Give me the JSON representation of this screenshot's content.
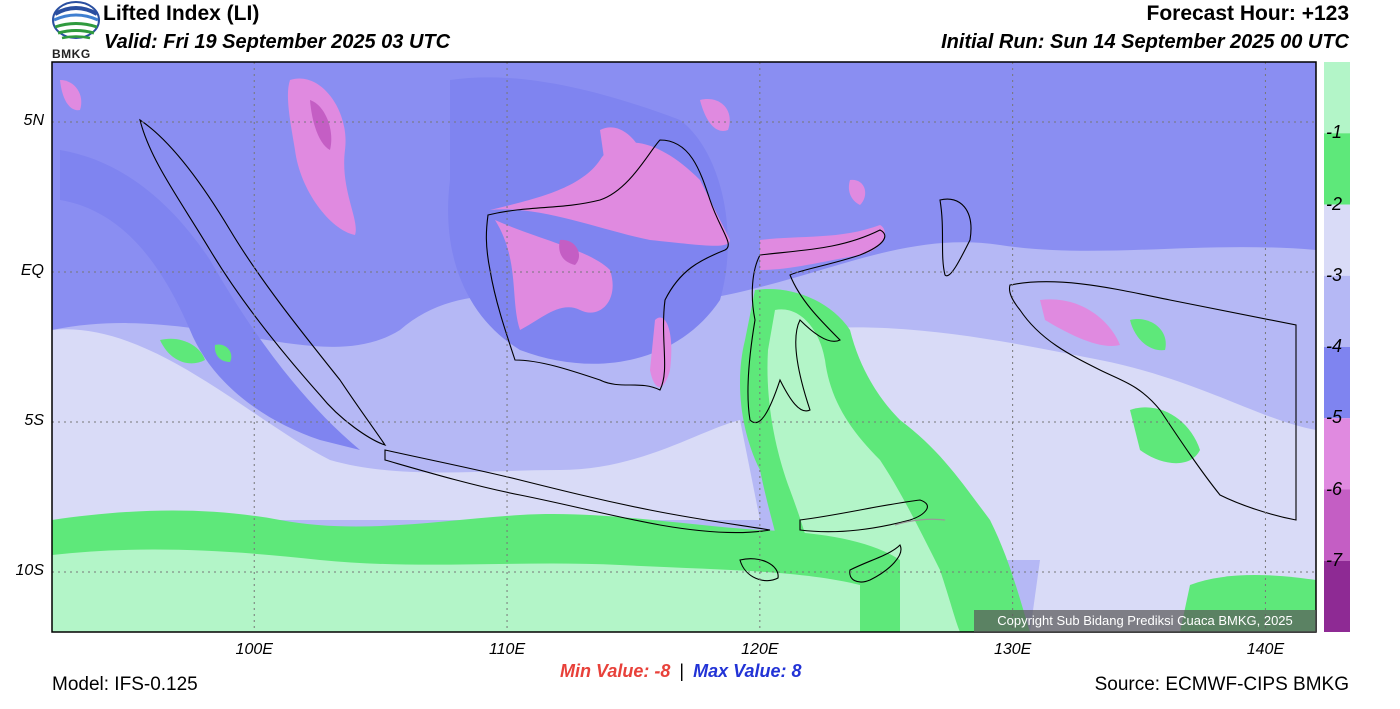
{
  "header": {
    "title": "Lifted Index (LI)",
    "valid": "Valid: Fri 19 September 2025 03 UTC",
    "forecast_hour": "Forecast Hour: +123",
    "initial_run": "Initial Run: Sun 14 September 2025 00 UTC"
  },
  "logo": {
    "text": "BMKG",
    "icon": "bmkg-logo-icon"
  },
  "map": {
    "lon_range": [
      92,
      142
    ],
    "lat_range": [
      -12,
      7
    ],
    "lat_ticks": [
      {
        "value": 5,
        "label": "5N"
      },
      {
        "value": 0,
        "label": "EQ"
      },
      {
        "value": -5,
        "label": "5S"
      },
      {
        "value": -10,
        "label": "10S"
      }
    ],
    "lon_ticks": [
      {
        "value": 100,
        "label": "100E"
      },
      {
        "value": 110,
        "label": "110E"
      },
      {
        "value": 120,
        "label": "120E"
      },
      {
        "value": 130,
        "label": "130E"
      },
      {
        "value": 140,
        "label": "140E"
      }
    ],
    "gridlines": true
  },
  "colorbar": {
    "colors": [
      "#b3f5c8",
      "#5ee87a",
      "#d9dbf7",
      "#b5b8f5",
      "#7f84f0",
      "#e08ae0",
      "#c45ec4",
      "#8e2a94"
    ],
    "labels": [
      "-1",
      "-2",
      "-3",
      "-4",
      "-5",
      "-6",
      "-7"
    ]
  },
  "stats": {
    "min_label": "Min Value:",
    "min_value": "-8",
    "separator": "|",
    "max_label": "Max Value:",
    "max_value": "8"
  },
  "footer": {
    "model": "Model: IFS-0.125",
    "source": "Source: ECMWF-CIPS BMKG",
    "copyright": "Copyright Sub Bidang Prediksi Cuaca BMKG, 2025"
  }
}
